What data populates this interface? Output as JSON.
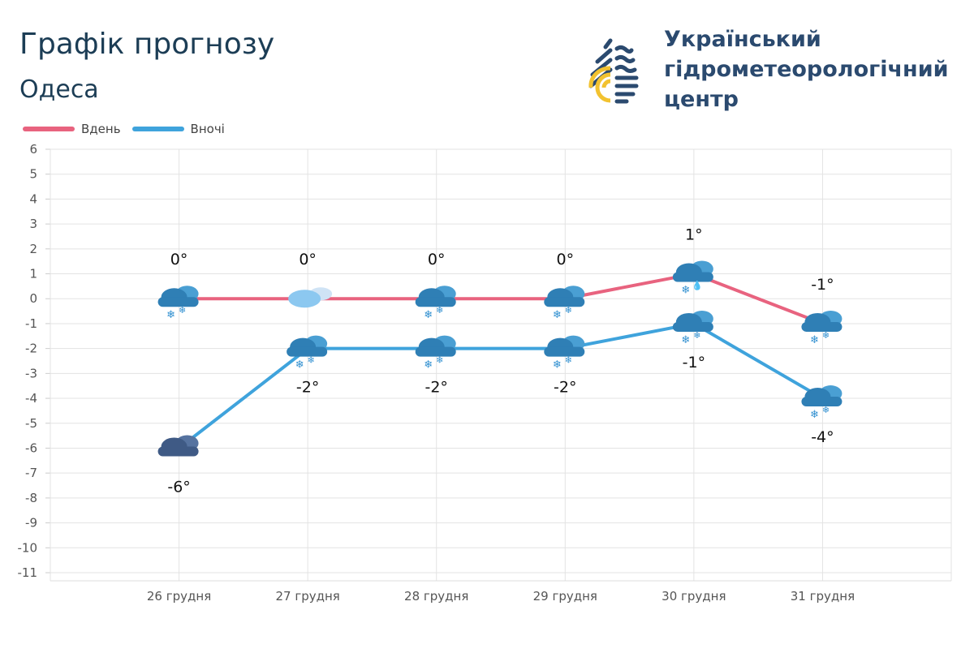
{
  "header": {
    "title": "Графік прогнозу",
    "city": "Одеса"
  },
  "logo": {
    "lines": [
      "Український",
      "гідрометеорологічний",
      "центр"
    ],
    "colors": {
      "navy": "#2b4a6f",
      "yellow": "#f2c230"
    }
  },
  "chart_data": {
    "type": "line",
    "categories": [
      "26 грудня",
      "27 грудня",
      "28 грудня",
      "29 грудня",
      "30 грудня",
      "31 грудня"
    ],
    "ylim": [
      -11,
      6
    ],
    "yticks": [
      6,
      5,
      4,
      3,
      2,
      1,
      0,
      -1,
      -2,
      -3,
      -4,
      -5,
      -6,
      -7,
      -8,
      -9,
      -10,
      -11
    ],
    "grid": true,
    "legend": "top-left",
    "series": [
      {
        "name": "Вдень",
        "color": "#e8637f",
        "values": [
          0,
          0,
          0,
          0,
          1,
          -1
        ],
        "labels": [
          "0°",
          "0°",
          "0°",
          "0°",
          "1°",
          "-1°"
        ],
        "icons": [
          "cloud-snow",
          "partly-cloudy",
          "cloud-snow",
          "cloud-snow",
          "cloud-snow-rain",
          "cloud-snow"
        ]
      },
      {
        "name": "Вночі",
        "color": "#3fa3dc",
        "values": [
          -6,
          -2,
          -2,
          -2,
          -1,
          -4
        ],
        "labels": [
          "-6°",
          "-2°",
          "-2°",
          "-2°",
          "-1°",
          "-4°"
        ],
        "icons": [
          "dark-cloud",
          "cloud-snow",
          "cloud-snow",
          "cloud-snow",
          "cloud-snow",
          "cloud-snow"
        ]
      }
    ]
  }
}
